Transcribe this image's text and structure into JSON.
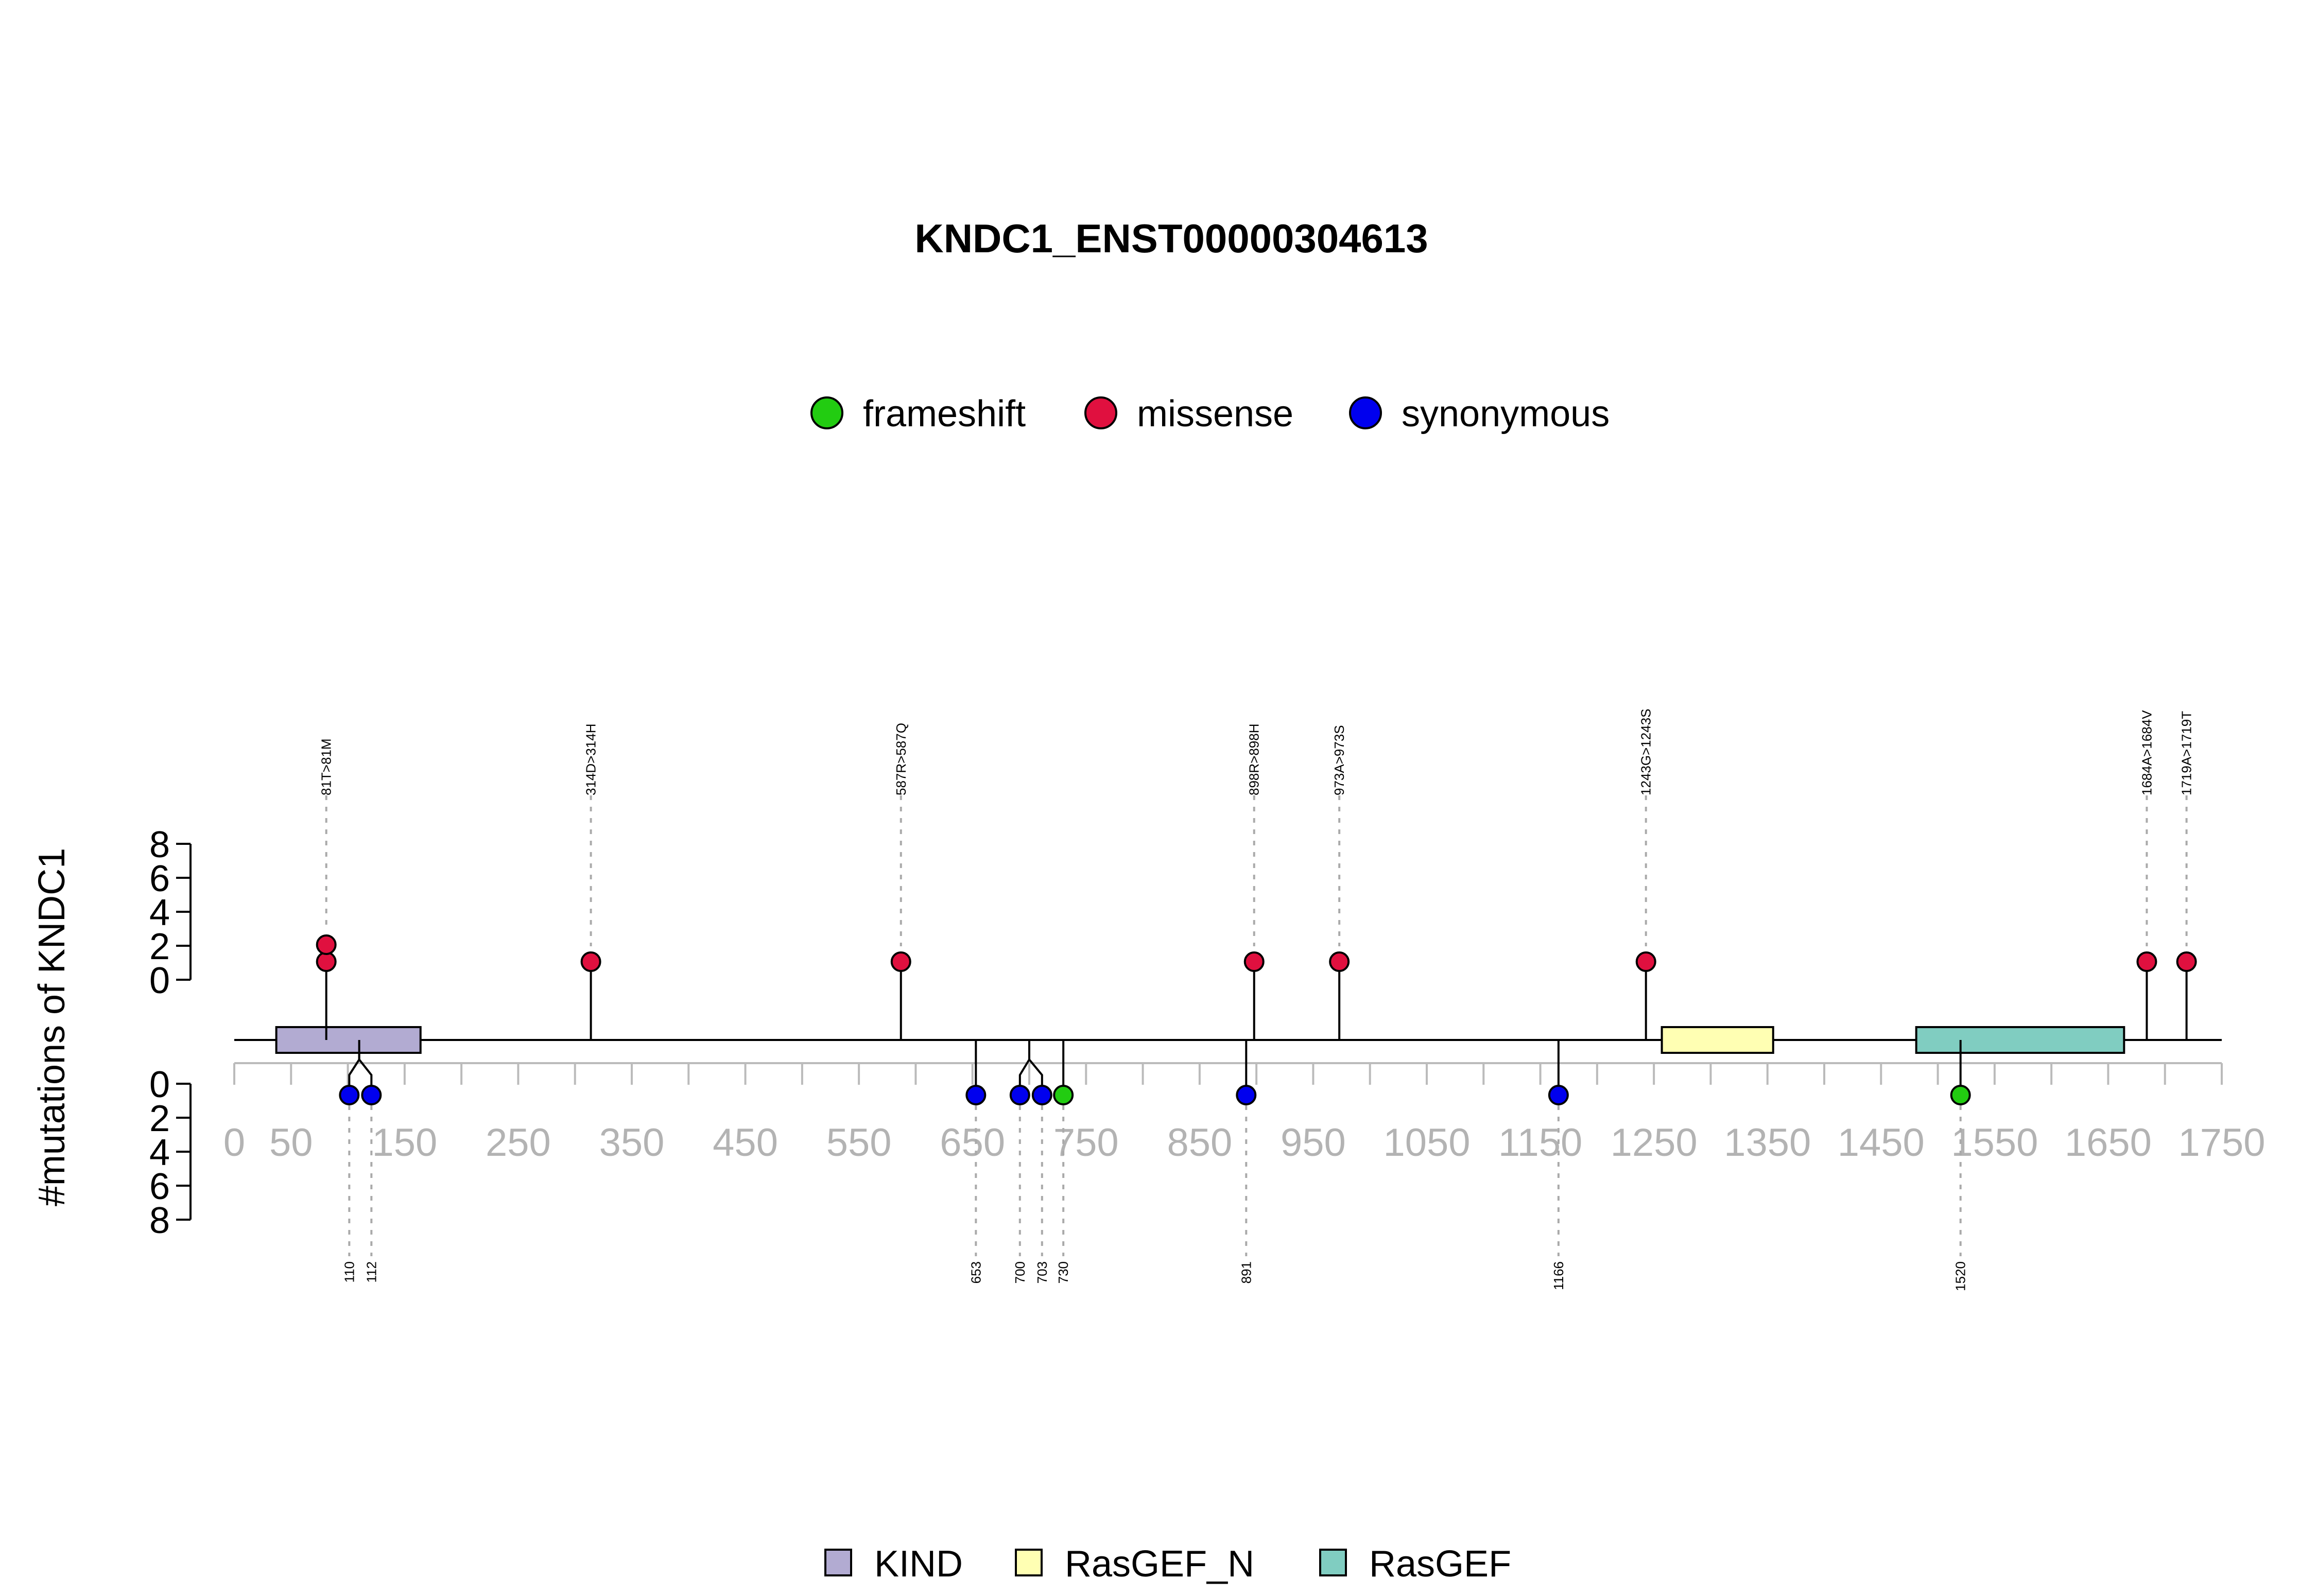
{
  "chart_data": {
    "type": "lollipop",
    "title": "KNDC1_ENST00000304613",
    "ylabel": "#mutations of KNDC1",
    "xlim": [
      0,
      1750
    ],
    "x_ticks": [
      0,
      50,
      150,
      250,
      350,
      450,
      550,
      650,
      750,
      850,
      950,
      1050,
      1150,
      1250,
      1350,
      1450,
      1550,
      1650,
      1750
    ],
    "y_ticks": [
      0,
      2,
      4,
      6,
      8
    ],
    "legend_top": [
      {
        "label": "frameshift",
        "color": "#22cc11"
      },
      {
        "label": "missense",
        "color": "#e0103f"
      },
      {
        "label": "synonymous",
        "color": "#0000ee"
      }
    ],
    "domains": [
      {
        "name": "KIND",
        "start": 37,
        "end": 164,
        "color": "#b2abd2"
      },
      {
        "name": "RasGEF_N",
        "start": 1257,
        "end": 1355,
        "color": "#ffffb3"
      },
      {
        "name": "RasGEF",
        "start": 1481,
        "end": 1664,
        "color": "#80cdc1"
      }
    ],
    "mutations_top": [
      {
        "label": "81T>81M",
        "pos": 81,
        "type": "missense",
        "count": 2
      },
      {
        "label": "314D>314H",
        "pos": 314,
        "type": "missense",
        "count": 1
      },
      {
        "label": "587R>587Q",
        "pos": 587,
        "type": "missense",
        "count": 1
      },
      {
        "label": "898R>898H",
        "pos": 898,
        "type": "missense",
        "count": 1
      },
      {
        "label": "973A>973S",
        "pos": 973,
        "type": "missense",
        "count": 1
      },
      {
        "label": "1243G>1243S",
        "pos": 1243,
        "type": "missense",
        "count": 1
      },
      {
        "label": "1684A>1684V",
        "pos": 1684,
        "type": "missense",
        "count": 1
      },
      {
        "label": "1719A>1719T",
        "pos": 1719,
        "type": "missense",
        "count": 1
      }
    ],
    "mutations_bottom": [
      {
        "label": "110",
        "pos": 110,
        "type": "synonymous",
        "count": 1
      },
      {
        "label": "112",
        "pos": 112,
        "type": "synonymous",
        "count": 1
      },
      {
        "label": "653",
        "pos": 653,
        "type": "synonymous",
        "count": 1
      },
      {
        "label": "700",
        "pos": 700,
        "type": "synonymous",
        "count": 1
      },
      {
        "label": "703",
        "pos": 703,
        "type": "synonymous",
        "count": 1
      },
      {
        "label": "730",
        "pos": 730,
        "type": "frameshift",
        "count": 1
      },
      {
        "label": "891",
        "pos": 891,
        "type": "synonymous",
        "count": 1
      },
      {
        "label": "1166",
        "pos": 1166,
        "type": "synonymous",
        "count": 1
      },
      {
        "label": "1520",
        "pos": 1520,
        "type": "frameshift",
        "count": 1
      }
    ]
  }
}
